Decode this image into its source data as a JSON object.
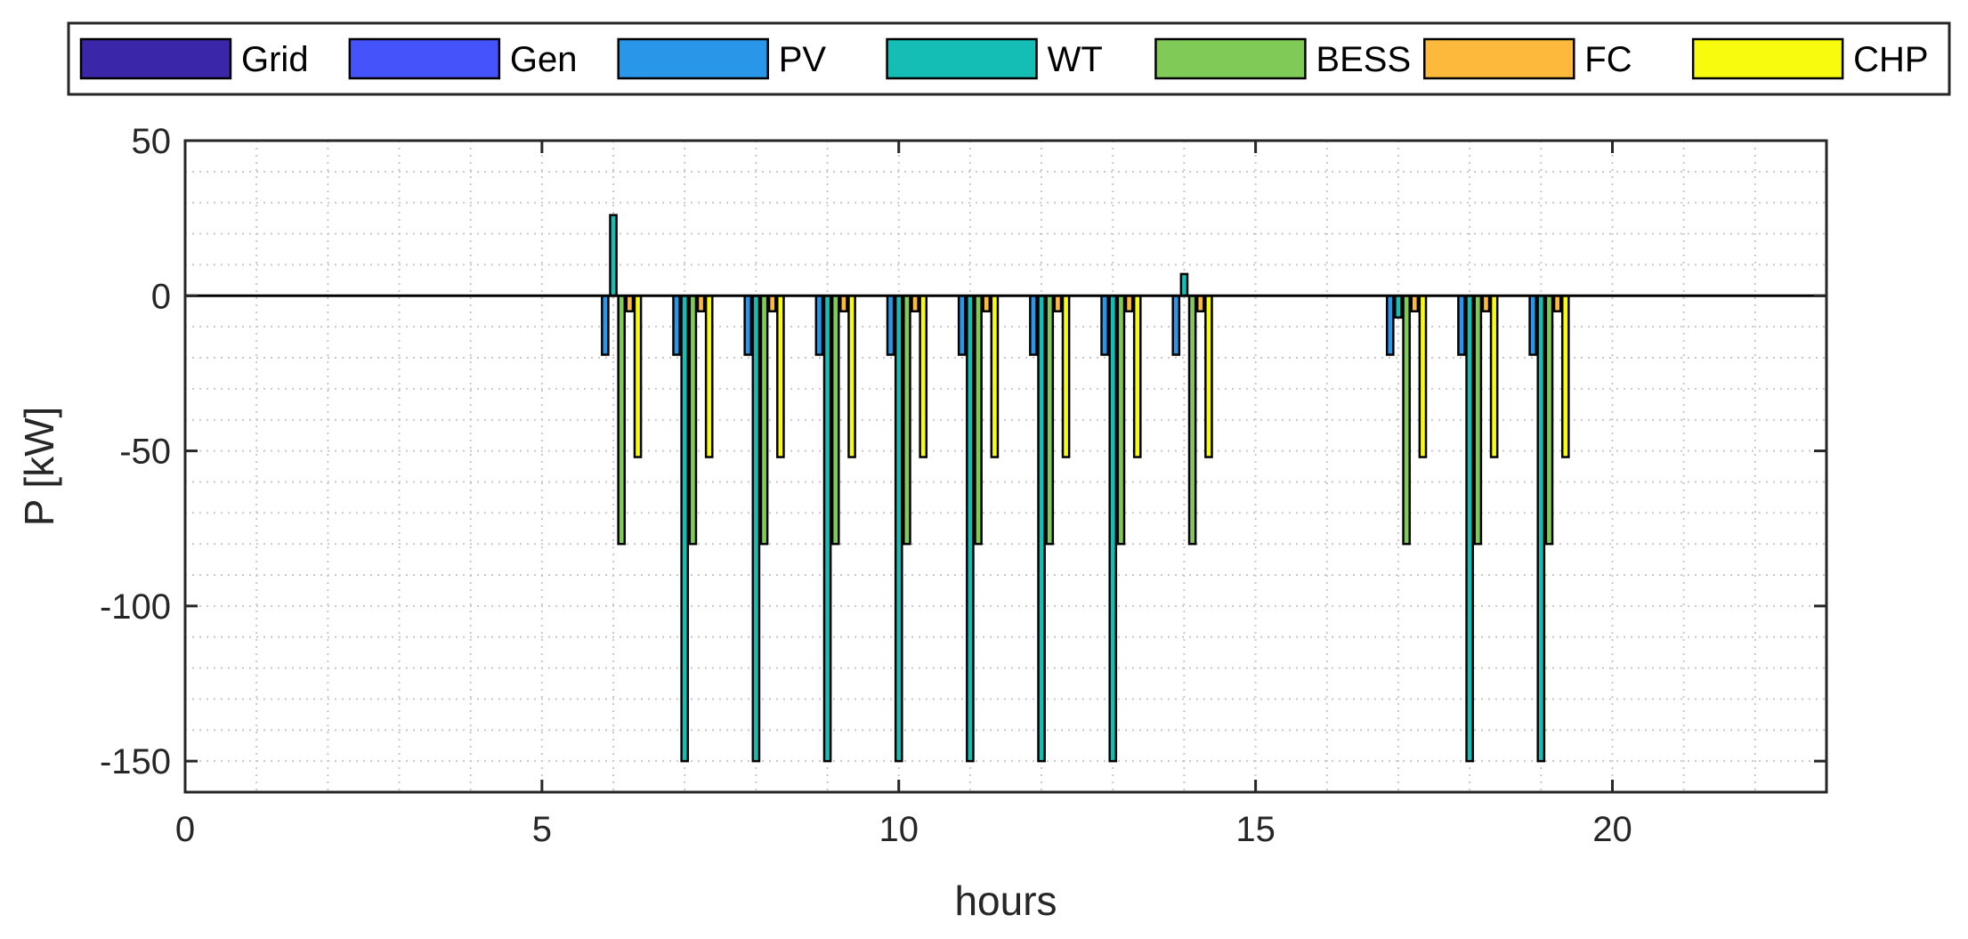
{
  "chart_data": {
    "type": "bar",
    "title": "",
    "xlabel": "hours",
    "ylabel": "P [kW]",
    "xlim": [
      0,
      23
    ],
    "ylim": [
      -160,
      50
    ],
    "xticks": [
      0,
      5,
      10,
      15,
      20
    ],
    "yticks": [
      50,
      0,
      -50,
      -100,
      -150
    ],
    "grid": "on (major and minor, dotted)",
    "legend_position": "top, horizontal",
    "x": [
      6,
      7,
      8,
      9,
      10,
      11,
      12,
      13,
      14,
      17,
      18,
      19
    ],
    "series": [
      {
        "name": "Grid",
        "color": "#3a26a8",
        "values": [
          0,
          0,
          0,
          0,
          0,
          0,
          0,
          0,
          0,
          0,
          0,
          0
        ]
      },
      {
        "name": "Gen",
        "color": "#4554fa",
        "values": [
          0,
          0,
          0,
          0,
          0,
          0,
          0,
          0,
          0,
          0,
          0,
          0
        ]
      },
      {
        "name": "PV",
        "color": "#2996e8",
        "values": [
          -19,
          -19,
          -19,
          -19,
          -19,
          -19,
          -19,
          -19,
          -19,
          -19,
          -19,
          -19
        ]
      },
      {
        "name": "WT",
        "color": "#14beb4",
        "values": [
          26,
          -150,
          -150,
          -150,
          -150,
          -150,
          -150,
          -150,
          7,
          -7,
          -150,
          -150
        ]
      },
      {
        "name": "BESS",
        "color": "#80cb58",
        "values": [
          -80,
          -80,
          -80,
          -80,
          -80,
          -80,
          -80,
          -80,
          -80,
          -80,
          -80,
          -80
        ]
      },
      {
        "name": "FC",
        "color": "#fcb93c",
        "values": [
          -5,
          -5,
          -5,
          -5,
          -5,
          -5,
          -5,
          -5,
          -5,
          -5,
          -5,
          -5
        ]
      },
      {
        "name": "CHP",
        "color": "#f9fb0e",
        "values": [
          -52,
          -52,
          -52,
          -52,
          -52,
          -52,
          -52,
          -52,
          -52,
          -52,
          -52,
          -52
        ]
      }
    ]
  }
}
